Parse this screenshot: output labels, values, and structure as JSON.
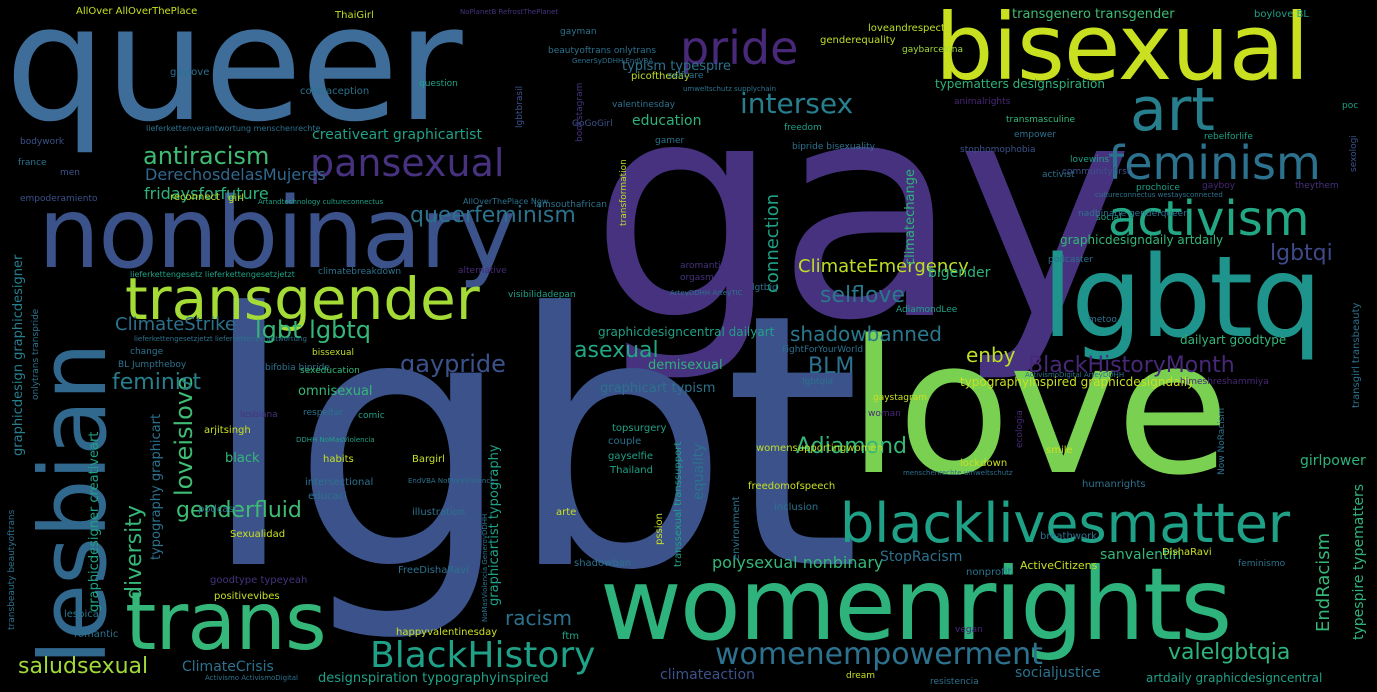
{
  "image": {
    "kind": "word cloud",
    "background": "#000000",
    "palette": [
      "#440154",
      "#46327e",
      "#365c8d",
      "#277f8e",
      "#1fa187",
      "#4ac16d",
      "#a0da39",
      "#fde725"
    ]
  },
  "words": [
    {
      "text": "gay"
    },
    {
      "text": "lgbt"
    },
    {
      "text": "queer"
    },
    {
      "text": "love"
    },
    {
      "text": "womenrights"
    },
    {
      "text": "nonbinary"
    },
    {
      "text": "lgbtq"
    },
    {
      "text": "bisexual"
    },
    {
      "text": "transgender"
    },
    {
      "text": "trans"
    },
    {
      "text": "lesbian"
    },
    {
      "text": "blacklivesmatter"
    },
    {
      "text": "pansexual"
    },
    {
      "text": "feminism"
    },
    {
      "text": "activism"
    },
    {
      "text": "art"
    },
    {
      "text": "pride"
    },
    {
      "text": "intersex"
    },
    {
      "text": "BlackHistory"
    },
    {
      "text": "womenempowerment"
    },
    {
      "text": "antiracism"
    },
    {
      "text": "queerfeminism"
    },
    {
      "text": "lgbtqi"
    },
    {
      "text": "BlackHistoryMonth"
    },
    {
      "text": "selflove"
    },
    {
      "text": "shadowbanned"
    },
    {
      "text": "lgbt lgbtq"
    },
    {
      "text": "gaypride"
    },
    {
      "text": "asexual"
    },
    {
      "text": "Adiamond"
    },
    {
      "text": "genderfluid"
    },
    {
      "text": "loveislove"
    },
    {
      "text": "diversity"
    },
    {
      "text": "saludsexual"
    },
    {
      "text": "valelgbtqia"
    },
    {
      "text": "racism"
    },
    {
      "text": "polysexual nonbinary"
    },
    {
      "text": "feminist"
    },
    {
      "text": "ClimateEmergency"
    },
    {
      "text": "ClimateStrike"
    },
    {
      "text": "connection"
    },
    {
      "text": "enby"
    },
    {
      "text": "BLM"
    },
    {
      "text": "bigender"
    },
    {
      "text": "DerechosdelasMujeres"
    },
    {
      "text": "fridaysforfuture"
    },
    {
      "text": "creativeart graphicartist"
    },
    {
      "text": "education"
    },
    {
      "text": "transgenero transgender"
    },
    {
      "text": "typism typespire"
    },
    {
      "text": "typematters designspiration"
    },
    {
      "text": "graphicart typism"
    },
    {
      "text": "omnisexual"
    },
    {
      "text": "typography graphicart"
    },
    {
      "text": "graphicdesigner creativeart"
    },
    {
      "text": "graphicdesign graphicdesigner"
    },
    {
      "text": "graphicdesigncentral dailyart"
    },
    {
      "text": "graphicartist typography"
    },
    {
      "text": "typographyinspired graphicdesigndaily"
    },
    {
      "text": "graphicdesigndaily artdaily"
    },
    {
      "text": "designspiration typographyinspired"
    },
    {
      "text": "artdaily graphicdesigncentral"
    },
    {
      "text": "typespire typematters"
    },
    {
      "text": "EndRacism"
    },
    {
      "text": "girlpower"
    },
    {
      "text": "equality"
    },
    {
      "text": "socialjustice"
    },
    {
      "text": "climateaction"
    },
    {
      "text": "sanvalentin"
    },
    {
      "text": "StopRacism"
    },
    {
      "text": "ClimateCrisis"
    },
    {
      "text": "climatechange"
    },
    {
      "text": "dailyart goodtype"
    },
    {
      "text": "demisexual"
    },
    {
      "text": "black"
    },
    {
      "text": "AllOver AllOverThePlace"
    },
    {
      "text": "ThaiGirl"
    },
    {
      "text": "genderequality"
    },
    {
      "text": "loveandrespect"
    },
    {
      "text": "boylove BL"
    },
    {
      "text": "gaybarcelona"
    },
    {
      "text": "beautyoftrans onlytrans"
    },
    {
      "text": "gaylove"
    },
    {
      "text": "picoftheday"
    },
    {
      "text": "selfcare"
    },
    {
      "text": "contraception"
    },
    {
      "text": "question"
    },
    {
      "text": "lgbtbrasil"
    },
    {
      "text": "valentinesday"
    },
    {
      "text": "animalrights"
    },
    {
      "text": "transmasculine"
    },
    {
      "text": "bookstagram"
    },
    {
      "text": "GoGoGirl"
    },
    {
      "text": "freedom"
    },
    {
      "text": "empower"
    },
    {
      "text": "rebelforlife"
    },
    {
      "text": "sexologi"
    },
    {
      "text": "bodywork"
    },
    {
      "text": "stophomophobia"
    },
    {
      "text": "lovewins"
    },
    {
      "text": "gamer"
    },
    {
      "text": "france"
    },
    {
      "text": "men"
    },
    {
      "text": "bipride bisexuality"
    },
    {
      "text": "transformation"
    },
    {
      "text": "activist"
    },
    {
      "text": "prochoice"
    },
    {
      "text": "theythem"
    },
    {
      "text": "gayboy"
    },
    {
      "text": "empoderamiento"
    },
    {
      "text": "reconnect"
    },
    {
      "text": "girl"
    },
    {
      "text": "iamsouthafrican"
    },
    {
      "text": "communityfirst"
    },
    {
      "text": "social"
    },
    {
      "text": "podcaster"
    },
    {
      "text": "alternative"
    },
    {
      "text": "climatebreakdown"
    },
    {
      "text": "aromantic"
    },
    {
      "text": "orgasmo"
    },
    {
      "text": "lgtbiq"
    },
    {
      "text": "visibilidadepan"
    },
    {
      "text": "AdiamondLee"
    },
    {
      "text": "metoo"
    },
    {
      "text": "change"
    },
    {
      "text": "bissexual"
    },
    {
      "text": "BL Jumptheboy"
    },
    {
      "text": "bifobia bipride"
    },
    {
      "text": "lgbtqia"
    },
    {
      "text": "sexeducation"
    },
    {
      "text": "FightForYourWorld"
    },
    {
      "text": "himeshreshammiya"
    },
    {
      "text": "transgirl transbeauty"
    },
    {
      "text": "onlytrans transpride"
    },
    {
      "text": "lesbiana"
    },
    {
      "text": "respeitar"
    },
    {
      "text": "comic"
    },
    {
      "text": "gaystagram"
    },
    {
      "text": "woman"
    },
    {
      "text": "topsurgery"
    },
    {
      "text": "arjitsingh"
    },
    {
      "text": "habits"
    },
    {
      "text": "Bargirl"
    },
    {
      "text": "couple"
    },
    {
      "text": "womensupportingwomen"
    },
    {
      "text": "smile"
    },
    {
      "text": "lockdown"
    },
    {
      "text": "gayselfie"
    },
    {
      "text": "Thailand"
    },
    {
      "text": "intersectional"
    },
    {
      "text": "educaci"
    },
    {
      "text": "freedomofspeech"
    },
    {
      "text": "humanrights"
    },
    {
      "text": "podcast"
    },
    {
      "text": "illustration"
    },
    {
      "text": "arte"
    },
    {
      "text": "inclusion"
    },
    {
      "text": "pssion"
    },
    {
      "text": "environment"
    },
    {
      "text": "transsexual transsupport"
    },
    {
      "text": "Sexualidad"
    },
    {
      "text": "breathwork"
    },
    {
      "text": "DishaRavi"
    },
    {
      "text": "nonprofit"
    },
    {
      "text": "ActiveCitizens"
    },
    {
      "text": "feminismo"
    },
    {
      "text": "FreeDishaRavi"
    },
    {
      "text": "shadowban"
    },
    {
      "text": "goodtype typeyeah"
    },
    {
      "text": "positivevibes"
    },
    {
      "text": "lesbica"
    },
    {
      "text": "romantic"
    },
    {
      "text": "happyvalentinesday"
    },
    {
      "text": "ftm"
    },
    {
      "text": "vegan"
    },
    {
      "text": "dream"
    },
    {
      "text": "resistencia"
    },
    {
      "text": "transbeauty beautyoftrans"
    },
    {
      "text": "gayman"
    },
    {
      "text": "Now NoRacism"
    },
    {
      "text": "nadbinarie genderqueer"
    },
    {
      "text": "lieferkettengesetz lieferkettengesetzjetzt"
    },
    {
      "text": "lieferkettenverantwortung menschenrechte"
    },
    {
      "text": "lieferkettengesetzjetzt lieferkettenverantwortung"
    },
    {
      "text": "AllOverThePlace Now"
    },
    {
      "text": "Artandtechnology cultureconnectus"
    },
    {
      "text": "umweltschutz supplychain"
    },
    {
      "text": "NoPlanetB RefrostThePlanet"
    },
    {
      "text": "GenerSyDDHH EndVBA"
    },
    {
      "text": "ArteyDDHH ArteyTIC"
    },
    {
      "text": "menschenrechte umweltschutz"
    },
    {
      "text": "cultureconnectus westaysconnected"
    },
    {
      "text": "DDHH NoMasViolencia"
    },
    {
      "text": "EndVBA NoMoreViolence"
    },
    {
      "text": "ActivismoDigital ArteyDDHH"
    },
    {
      "text": "NoMasViolencia GeneroyDDHH"
    },
    {
      "text": "Activismo ActivismoDigital"
    },
    {
      "text": "poc"
    },
    {
      "text": "ecologia"
    }
  ]
}
